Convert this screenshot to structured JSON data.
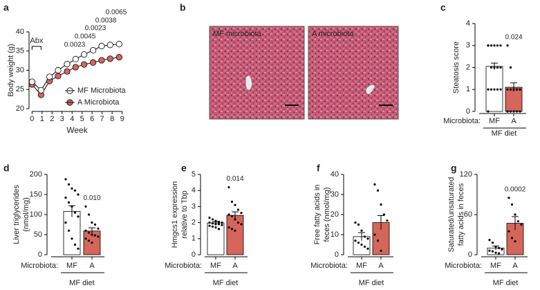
{
  "chart_data": [
    {
      "type": "line",
      "panel": "a",
      "ylabel": [
        "Body weight (g)"
      ],
      "xlabel": "Week",
      "x": [
        0,
        0.9,
        1.75,
        2.6,
        3.5,
        4.35,
        5.2,
        6.1,
        6.95,
        7.8,
        8.7
      ],
      "series": [
        {
          "name": "MF Microbiota",
          "color": "#ffffff",
          "values": [
            27,
            24.8,
            28.3,
            30,
            31.6,
            32.9,
            34.1,
            35.2,
            36.3,
            36.6,
            36.8
          ]
        },
        {
          "name": "A Microbiota",
          "color": "#d4665b",
          "values": [
            26.3,
            23.6,
            27.2,
            28.5,
            29.7,
            30.8,
            31.5,
            32,
            32.6,
            33,
            33.4
          ]
        }
      ],
      "xlim": [
        -0.3,
        9.3
      ],
      "xticks": [
        0,
        1,
        2,
        3,
        4,
        5,
        6,
        7,
        8,
        9
      ],
      "ylim": [
        20,
        40
      ],
      "yticks": [
        20,
        25,
        30,
        35,
        40
      ],
      "annotations": [
        "Abx"
      ],
      "p_labels": [
        "0.0023",
        "0.0045",
        "0.0023",
        "0.0038",
        "0.0065"
      ]
    },
    {
      "type": "bar",
      "panel": "c",
      "ylabel": [
        "Steatosis score"
      ],
      "xlabel": "Microbiota:",
      "group_label": "MF diet",
      "categories": [
        "MF",
        "A"
      ],
      "values": [
        2.05,
        1.1
      ],
      "errors": [
        0.15,
        0.2
      ],
      "colors": [
        "#ffffff",
        "#d4665b"
      ],
      "points": [
        [
          3,
          3,
          3,
          3,
          3,
          3,
          2,
          2,
          2,
          2,
          1,
          1,
          1,
          1,
          1,
          0
        ],
        [
          3,
          2,
          1,
          1,
          1,
          1,
          1,
          1,
          1,
          1,
          0,
          0,
          0,
          0,
          0,
          0
        ]
      ],
      "p_labels": [
        null,
        "0.024"
      ],
      "ylim": [
        0,
        4
      ],
      "yticks": [
        0,
        1,
        2,
        3,
        4
      ]
    },
    {
      "type": "bar",
      "panel": "d",
      "ylabel": [
        "Liver triglycerides",
        "(nmol/mg)"
      ],
      "xlabel": "Microbiota:",
      "group_label": "MF diet",
      "categories": [
        "MF",
        "A"
      ],
      "values": [
        108,
        59
      ],
      "errors": [
        14,
        8
      ],
      "colors": [
        "#ffffff",
        "#d4665b"
      ],
      "points": [
        [
          188,
          175,
          165,
          160,
          150,
          142,
          130,
          120,
          105,
          95,
          80,
          60,
          40,
          25,
          15
        ],
        [
          120,
          100,
          80,
          75,
          65,
          60,
          55,
          50,
          48,
          45,
          40,
          35,
          30
        ]
      ],
      "p_labels": [
        null,
        "0.010"
      ],
      "ylim": [
        0,
        200
      ],
      "yticks": [
        0,
        50,
        100,
        150,
        200
      ]
    },
    {
      "type": "bar",
      "panel": "e",
      "ylabel": [
        "Hmgcs1 expression",
        "relative to Tbp"
      ],
      "xlabel": "Microbiota:",
      "group_label": "MF diet",
      "categories": [
        "MF",
        "A"
      ],
      "values": [
        1.98,
        2.45
      ],
      "errors": [
        0.08,
        0.22
      ],
      "colors": [
        "#ffffff",
        "#d4665b"
      ],
      "points": [
        [
          2.3,
          2.2,
          2.1,
          2.05,
          2,
          2,
          1.95,
          1.9,
          1.9,
          1.85,
          1.8,
          1.75,
          1.7,
          1.6
        ],
        [
          4.2,
          3.3,
          3.1,
          2.8,
          2.6,
          2.5,
          2.4,
          2.2,
          2,
          1.9,
          1.7,
          1.6,
          1.5
        ]
      ],
      "p_labels": [
        null,
        "0.014"
      ],
      "ylim": [
        0,
        5
      ],
      "yticks": [
        0,
        1,
        2,
        3,
        4,
        5
      ]
    },
    {
      "type": "bar",
      "panel": "f",
      "ylabel": [
        "Free fatty acids in",
        "feces (nmol/mg)"
      ],
      "xlabel": "Microbiota:",
      "group_label": "MF diet",
      "categories": [
        "MF",
        "A"
      ],
      "values": [
        9,
        16
      ],
      "errors": [
        2,
        3.5
      ],
      "colors": [
        "#ffffff",
        "#d4665b"
      ],
      "points": [
        [
          16,
          15,
          12,
          9,
          8,
          7,
          6,
          5,
          4,
          3
        ],
        [
          35,
          32,
          25,
          20,
          17,
          10,
          7,
          2
        ]
      ],
      "p_labels": [
        null,
        null
      ],
      "ylim": [
        0,
        40
      ],
      "yticks": [
        0,
        10,
        20,
        30,
        40
      ]
    },
    {
      "type": "bar",
      "panel": "g",
      "ylabel": [
        "Saturated/unsaturated",
        "fatty acids in feces"
      ],
      "xlabel": "Microbiota:",
      "group_label": "MF diet",
      "categories": [
        "MF",
        "A"
      ],
      "values": [
        10,
        47
      ],
      "errors": [
        3,
        10
      ],
      "colors": [
        "#ffffff",
        "#d4665b"
      ],
      "points": [
        [
          22,
          18,
          12,
          10,
          8,
          6,
          5,
          3,
          2
        ],
        [
          85,
          75,
          60,
          50,
          45,
          35,
          25,
          20
        ]
      ],
      "p_labels": [
        null,
        "0.0002"
      ],
      "ylim": [
        0,
        120
      ],
      "yticks": [
        0,
        60,
        120
      ]
    }
  ],
  "micrographs": {
    "panel": "b",
    "labels": [
      "MF microbiota",
      "A microbiota"
    ]
  }
}
